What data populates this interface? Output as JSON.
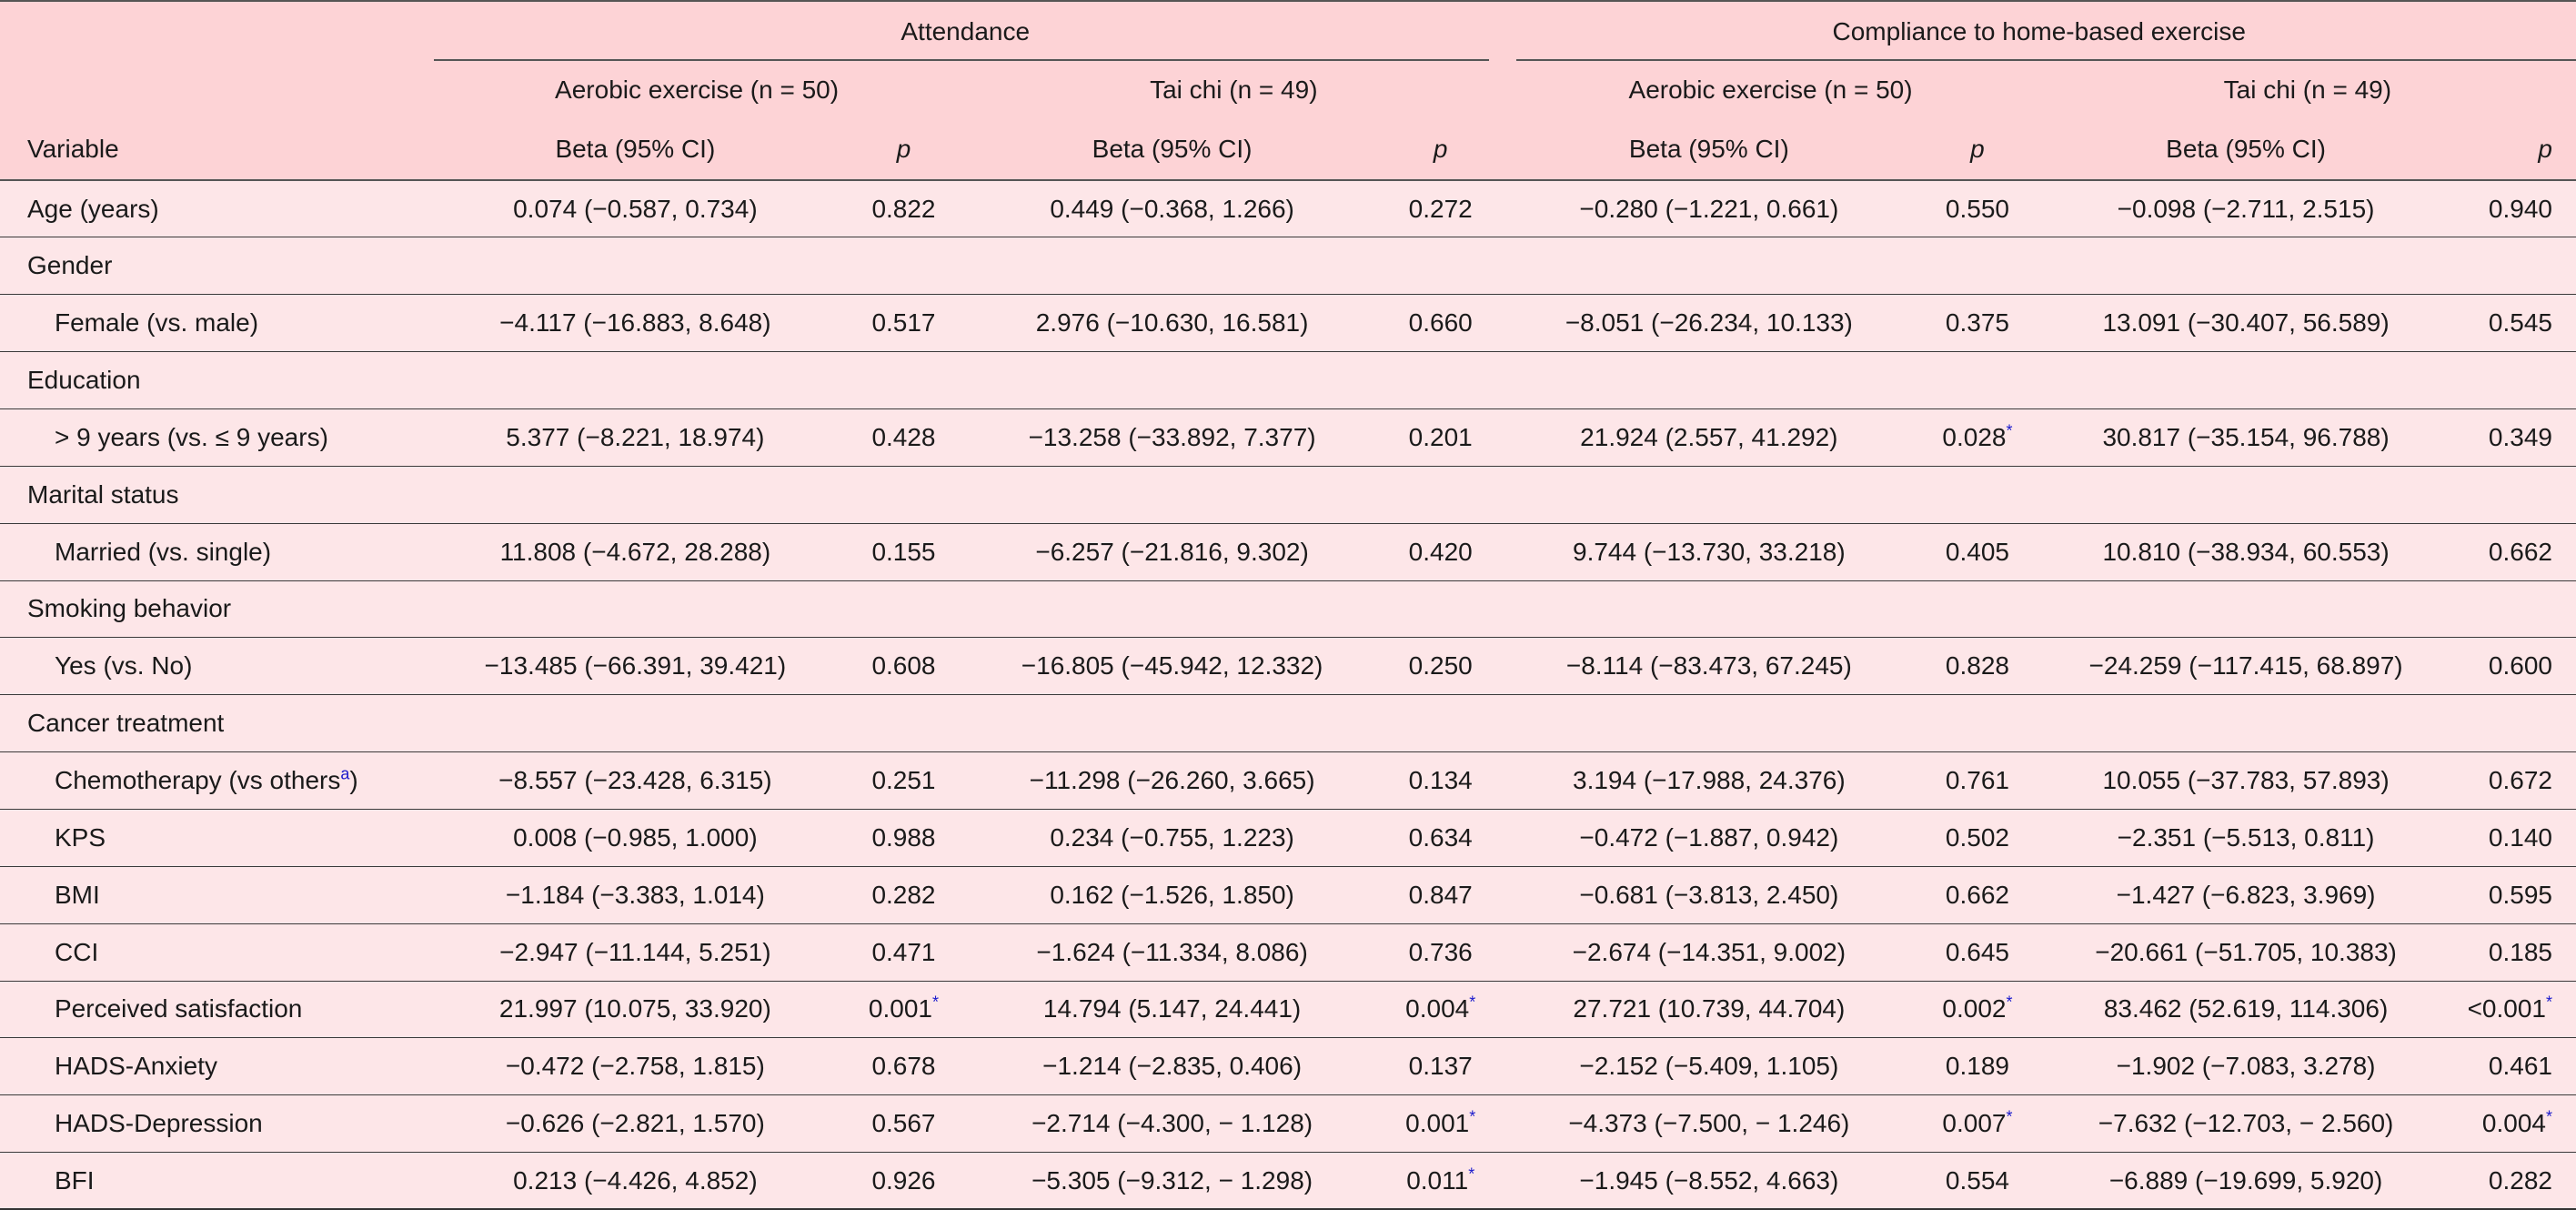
{
  "header": {
    "attendance": "Attendance",
    "compliance": "Compliance to home-based exercise",
    "aerobic": "Aerobic exercise (n = 50)",
    "taichi": "Tai chi (n = 49)",
    "variable": "Variable",
    "beta": "Beta (95% CI)",
    "p": "p"
  },
  "sig_mark": "*",
  "chemo_sup": "a",
  "rows": [
    {
      "label": "Age (years)",
      "indent": false,
      "values": [
        {
          "beta": "0.074 (−0.587, 0.734)",
          "p": "0.822"
        },
        {
          "beta": "0.449 (−0.368, 1.266)",
          "p": "0.272"
        },
        {
          "beta": "−0.280 (−1.221, 0.661)",
          "p": "0.550"
        },
        {
          "beta": "−0.098 (−2.711, 2.515)",
          "p": "0.940"
        }
      ]
    },
    {
      "label": "Gender",
      "indent": false,
      "values": []
    },
    {
      "label": "Female (vs. male)",
      "indent": true,
      "values": [
        {
          "beta": "−4.117 (−16.883, 8.648)",
          "p": "0.517"
        },
        {
          "beta": "2.976 (−10.630, 16.581)",
          "p": "0.660"
        },
        {
          "beta": "−8.051 (−26.234, 10.133)",
          "p": "0.375"
        },
        {
          "beta": "13.091 (−30.407, 56.589)",
          "p": "0.545"
        }
      ]
    },
    {
      "label": "Education",
      "indent": false,
      "values": []
    },
    {
      "label": "> 9 years (vs. ≤ 9 years)",
      "indent": true,
      "values": [
        {
          "beta": "5.377 (−8.221, 18.974)",
          "p": "0.428"
        },
        {
          "beta": "−13.258 (−33.892, 7.377)",
          "p": "0.201"
        },
        {
          "beta": "21.924 (2.557, 41.292)",
          "p": "0.028",
          "sig": true
        },
        {
          "beta": "30.817 (−35.154, 96.788)",
          "p": "0.349"
        }
      ]
    },
    {
      "label": "Marital status",
      "indent": false,
      "values": []
    },
    {
      "label": "Married (vs. single)",
      "indent": true,
      "values": [
        {
          "beta": "11.808 (−4.672, 28.288)",
          "p": "0.155"
        },
        {
          "beta": "−6.257 (−21.816, 9.302)",
          "p": "0.420"
        },
        {
          "beta": "9.744 (−13.730, 33.218)",
          "p": "0.405"
        },
        {
          "beta": "10.810 (−38.934, 60.553)",
          "p": "0.662"
        }
      ]
    },
    {
      "label": "Smoking behavior",
      "indent": false,
      "values": []
    },
    {
      "label": "Yes (vs. No)",
      "indent": true,
      "values": [
        {
          "beta": "−13.485 (−66.391, 39.421)",
          "p": "0.608"
        },
        {
          "beta": "−16.805 (−45.942, 12.332)",
          "p": "0.250"
        },
        {
          "beta": "−8.114 (−83.473, 67.245)",
          "p": "0.828"
        },
        {
          "beta": "−24.259 (−117.415, 68.897)",
          "p": "0.600"
        }
      ]
    },
    {
      "label": "Cancer treatment",
      "indent": false,
      "values": []
    },
    {
      "label": "Chemotherapy (vs others",
      "label_suffix": ")",
      "sup": true,
      "indent": true,
      "values": [
        {
          "beta": "−8.557 (−23.428, 6.315)",
          "p": "0.251"
        },
        {
          "beta": "−11.298 (−26.260, 3.665)",
          "p": "0.134"
        },
        {
          "beta": "3.194 (−17.988, 24.376)",
          "p": "0.761"
        },
        {
          "beta": "10.055 (−37.783, 57.893)",
          "p": "0.672"
        }
      ]
    },
    {
      "label": "KPS",
      "indent": true,
      "values": [
        {
          "beta": "0.008 (−0.985, 1.000)",
          "p": "0.988"
        },
        {
          "beta": "0.234 (−0.755, 1.223)",
          "p": "0.634"
        },
        {
          "beta": "−0.472 (−1.887, 0.942)",
          "p": "0.502"
        },
        {
          "beta": "−2.351 (−5.513, 0.811)",
          "p": "0.140"
        }
      ]
    },
    {
      "label": "BMI",
      "indent": true,
      "values": [
        {
          "beta": "−1.184 (−3.383, 1.014)",
          "p": "0.282"
        },
        {
          "beta": "0.162 (−1.526, 1.850)",
          "p": "0.847"
        },
        {
          "beta": "−0.681 (−3.813, 2.450)",
          "p": "0.662"
        },
        {
          "beta": "−1.427 (−6.823, 3.969)",
          "p": "0.595"
        }
      ]
    },
    {
      "label": "CCI",
      "indent": true,
      "values": [
        {
          "beta": "−2.947 (−11.144, 5.251)",
          "p": "0.471"
        },
        {
          "beta": "−1.624 (−11.334, 8.086)",
          "p": "0.736"
        },
        {
          "beta": "−2.674 (−14.351, 9.002)",
          "p": "0.645"
        },
        {
          "beta": "−20.661 (−51.705, 10.383)",
          "p": "0.185"
        }
      ]
    },
    {
      "label": "Perceived satisfaction",
      "indent": true,
      "values": [
        {
          "beta": "21.997 (10.075, 33.920)",
          "p": "0.001",
          "sig": true
        },
        {
          "beta": "14.794 (5.147, 24.441)",
          "p": "0.004",
          "sig": true
        },
        {
          "beta": "27.721 (10.739, 44.704)",
          "p": "0.002",
          "sig": true
        },
        {
          "beta": "83.462 (52.619, 114.306)",
          "p": "<0.001",
          "sig": true
        }
      ]
    },
    {
      "label": "HADS-Anxiety",
      "indent": true,
      "values": [
        {
          "beta": "−0.472 (−2.758, 1.815)",
          "p": "0.678"
        },
        {
          "beta": "−1.214 (−2.835, 0.406)",
          "p": "0.137"
        },
        {
          "beta": "−2.152 (−5.409, 1.105)",
          "p": "0.189"
        },
        {
          "beta": "−1.902 (−7.083, 3.278)",
          "p": "0.461"
        }
      ]
    },
    {
      "label": "HADS-Depression",
      "indent": true,
      "values": [
        {
          "beta": "−0.626 (−2.821, 1.570)",
          "p": "0.567"
        },
        {
          "beta": "−2.714 (−4.300, − 1.128)",
          "p": "0.001",
          "sig": true
        },
        {
          "beta": "−4.373 (−7.500, − 1.246)",
          "p": "0.007",
          "sig": true
        },
        {
          "beta": "−7.632 (−12.703, − 2.560)",
          "p": "0.004",
          "sig": true
        }
      ]
    },
    {
      "label": "BFI",
      "indent": true,
      "values": [
        {
          "beta": "0.213 (−4.426, 4.852)",
          "p": "0.926"
        },
        {
          "beta": "−5.305 (−9.312, − 1.298)",
          "p": "0.011",
          "sig": true
        },
        {
          "beta": "−1.945 (−8.552, 4.663)",
          "p": "0.554"
        },
        {
          "beta": "−6.889 (−19.699, 5.920)",
          "p": "0.282"
        }
      ]
    }
  ]
}
